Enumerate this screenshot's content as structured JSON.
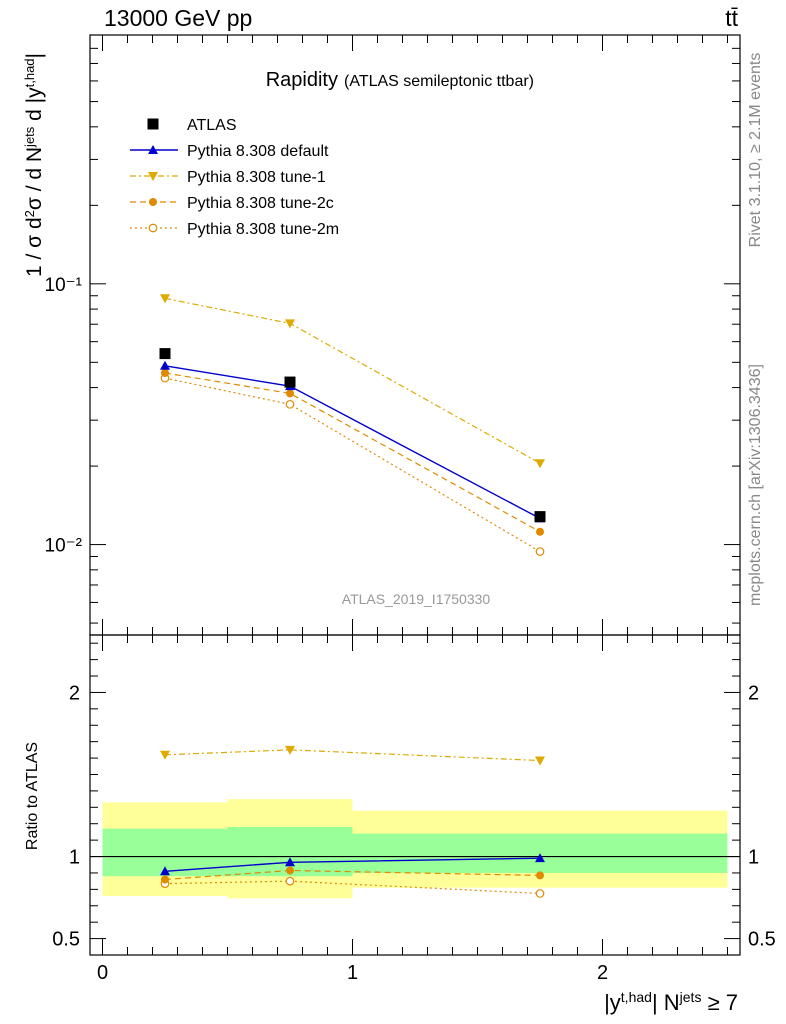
{
  "header": {
    "left": "13000 GeV pp",
    "right": "tt̄"
  },
  "side_labels": {
    "rivet": "Rivet 3.1.10, ≥ 2.1M events",
    "mcplots": "mcplots.cern.ch [arXiv:1306.3436]"
  },
  "chart_data": [
    {
      "type": "scatter",
      "title": "Rapidity",
      "subtitle": "(ATLAS semileptonic ttbar)",
      "watermark": "ATLAS_2019_I1750330",
      "ylabel": "1 / σ d²σ / d N^jets d |y^t,had|",
      "yscale": "log",
      "ylim": [
        0.0045,
        0.9
      ],
      "xlim": [
        -0.05,
        2.55
      ],
      "y_tick_labels": [
        "10⁻²",
        "10⁻¹"
      ],
      "x": [
        0.25,
        0.75,
        1.75
      ],
      "x_bin_edges": [
        0,
        0.5,
        1,
        2.5
      ],
      "legend": "top-left",
      "series": [
        {
          "name": "ATLAS",
          "values": [
            0.054,
            0.042,
            0.0128
          ],
          "color": "#000000",
          "marker": "square",
          "line": "none"
        },
        {
          "name": "Pythia 8.308 default",
          "values": [
            0.0485,
            0.0405,
            0.0126
          ],
          "color": "#0000cc",
          "marker": "triangle-up",
          "line": "solid"
        },
        {
          "name": "Pythia 8.308 tune-1",
          "values": [
            0.088,
            0.0705,
            0.0205
          ],
          "color": "#ddaa00",
          "marker": "triangle-down",
          "line": "dashdot"
        },
        {
          "name": "Pythia 8.308 tune-2c",
          "values": [
            0.0455,
            0.038,
            0.0112
          ],
          "color": "#e08a00",
          "marker": "circle",
          "line": "dashed"
        },
        {
          "name": "Pythia 8.308 tune-2m",
          "values": [
            0.0435,
            0.0345,
            0.0094
          ],
          "color": "#e08a00",
          "marker": "circle-open",
          "line": "dotted"
        }
      ]
    },
    {
      "type": "scatter",
      "ylabel": "Ratio to ATLAS",
      "xlabel_parts": [
        "|y",
        "t,had",
        "| N",
        "jets",
        " ≥ 7"
      ],
      "ylim": [
        0.4,
        2.35
      ],
      "xlim": [
        -0.05,
        2.55
      ],
      "x_tick_labels": [
        "0",
        "1",
        "2"
      ],
      "y_tick_labels": [
        "0.5",
        "1",
        "2"
      ],
      "reference_line": 1.0,
      "uncertainty_bands": {
        "bins": [
          [
            0,
            0.5
          ],
          [
            0.5,
            1
          ],
          [
            1,
            2.5
          ]
        ],
        "inner": [
          [
            0.88,
            1.17
          ],
          [
            0.88,
            1.18
          ],
          [
            0.9,
            1.14
          ]
        ],
        "outer": [
          [
            0.76,
            1.33
          ],
          [
            0.745,
            1.35
          ],
          [
            0.81,
            1.28
          ]
        ],
        "inner_color": "#99ff99",
        "outer_color": "#ffff99"
      },
      "x": [
        0.25,
        0.75,
        1.75
      ],
      "series": [
        {
          "name": "Pythia 8.308 default",
          "values": [
            0.91,
            0.965,
            0.99
          ],
          "color": "#0000cc",
          "marker": "triangle-up",
          "line": "solid"
        },
        {
          "name": "Pythia 8.308 tune-1",
          "values": [
            1.62,
            1.65,
            1.585
          ],
          "color": "#ddaa00",
          "marker": "triangle-down",
          "line": "dashdot"
        },
        {
          "name": "Pythia 8.308 tune-2c",
          "values": [
            0.86,
            0.915,
            0.885
          ],
          "color": "#e08a00",
          "marker": "circle",
          "line": "dashed"
        },
        {
          "name": "Pythia 8.308 tune-2m",
          "values": [
            0.835,
            0.85,
            0.775
          ],
          "color": "#e08a00",
          "marker": "circle-open",
          "line": "dotted"
        }
      ]
    }
  ]
}
